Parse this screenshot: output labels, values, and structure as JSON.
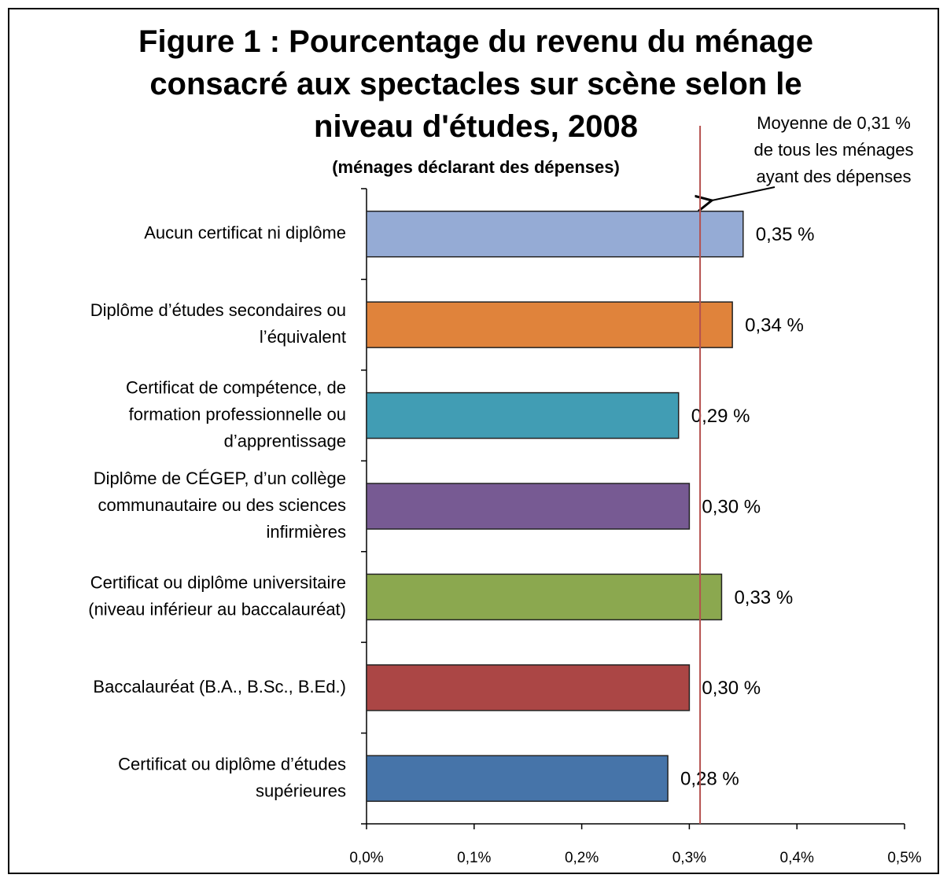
{
  "chart_data": {
    "type": "barh",
    "title": "Figure 1 : Pourcentage du revenu du ménage\nconsacré aux spectacles sur scène selon le\nniveau d'études, 2008",
    "subtitle": "(ménages déclarant des dépenses)",
    "categories": [
      "Aucun certificat ni diplôme",
      "Diplôme d’études secondaires ou\nl’équivalent",
      "Certificat de compétence, de\nformation professionnelle ou\nd’apprentissage",
      "Diplôme de CÉGEP, d’un collège\ncommunautaire ou des sciences\ninfirmières",
      "Certificat ou diplôme universitaire\n(niveau inférieur au baccalauréat)",
      "Baccalauréat  (B.A., B.Sc., B.Ed.)",
      "Certificat ou diplôme d’études\nsupérieures"
    ],
    "values": [
      0.35,
      0.34,
      0.29,
      0.3,
      0.33,
      0.3,
      0.28
    ],
    "value_labels": [
      "0,35 %",
      "0,34 %",
      "0,29 %",
      "0,30 %",
      "0,33 %",
      "0,30 %",
      "0,28 %"
    ],
    "colors": [
      "#95abd5",
      "#e0833b",
      "#419db4",
      "#775a93",
      "#8ba84f",
      "#ab4645",
      "#4674a9"
    ],
    "xlim": [
      0,
      0.5
    ],
    "xticks": [
      {
        "value": 0,
        "label": "0,0%"
      },
      {
        "value": 0.1,
        "label": "0,1%"
      },
      {
        "value": 0.2,
        "label": "0,2%"
      },
      {
        "value": 0.3,
        "label": "0,3%"
      },
      {
        "value": 0.4,
        "label": "0,4%"
      },
      {
        "value": 0.5,
        "label": "0,5%"
      }
    ],
    "reference_line": {
      "value": 0.31,
      "color": "#b5514f",
      "label": "Moyenne de 0,31 %\nde tous les ménages\nayant des dépenses"
    }
  }
}
